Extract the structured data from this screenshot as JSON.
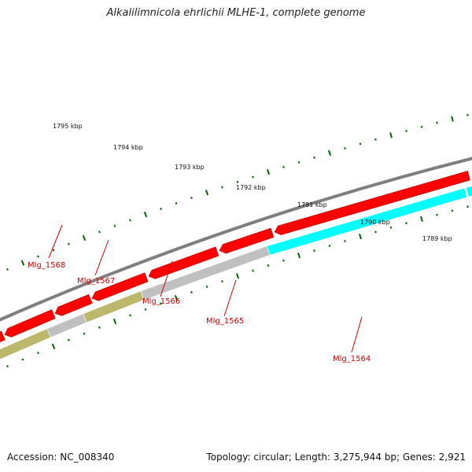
{
  "title": "Alkalilimnicola ehrlichii MLHE-1, complete genome",
  "footer": {
    "accession": "Accession: NC_008340",
    "summary": "Topology: circular; Length: 3,275,944 bp; Genes: 2,921"
  },
  "colors": {
    "backbone": "#7f7f7f",
    "forward_gene": "#ff0000",
    "reverse_gene_grey": "#c0c0c0",
    "reverse_gene_olive": "#bdb76b",
    "reverse_gene_cyan": "#00ffff",
    "tick": "#006400",
    "gene_label": "#cc0000"
  },
  "kbp_ticks": [
    "1795 kbp",
    "1794 kbp",
    "1793 kbp",
    "1792 kbp",
    "1791 kbp",
    "1790 kbp",
    "1789 kbp"
  ],
  "gene_labels": [
    "Mlg_1568",
    "Mlg_1567",
    "Mlg_1566",
    "Mlg_1565",
    "Mlg_1564"
  ]
}
